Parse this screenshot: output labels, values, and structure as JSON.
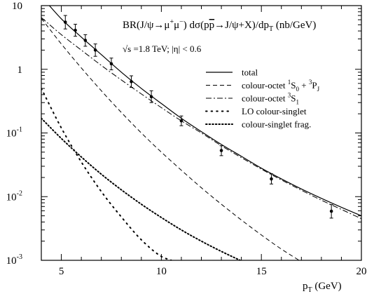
{
  "chart_data": {
    "type": "line",
    "title_parts": {
      "a": "BR(J/",
      "psi": "ψ",
      "arrow": "→",
      "mu1": "μ",
      "mu2": "μ",
      "b": ") dσ(p",
      "pbar": "p",
      "c": "→J/",
      "d": "+X)/dp",
      "sub_t": "T",
      "e": " (nb/GeV)"
    },
    "subtitle_parts": {
      "sqrt": "√",
      "s": "s =1.8 TeV; |",
      "eta": "η",
      "rest": "| < 0.6"
    },
    "xlabel_parts": {
      "p": "p",
      "sub": "T",
      "unit": " (GeV)"
    },
    "xlim": [
      4,
      20
    ],
    "ylim": [
      0.001,
      10
    ],
    "yscale": "log",
    "x_ticks": [
      {
        "value": 5,
        "label": "5"
      },
      {
        "value": 10,
        "label": "10"
      },
      {
        "value": 15,
        "label": "15"
      },
      {
        "value": 20,
        "label": "20"
      }
    ],
    "y_ticks": [
      {
        "value": 10,
        "base": "10",
        "exp": ""
      },
      {
        "value": 1,
        "base": "1",
        "exp": ""
      },
      {
        "value": 0.1,
        "base": "10",
        "exp": "-1"
      },
      {
        "value": 0.01,
        "base": "10",
        "exp": "-2"
      },
      {
        "value": 0.001,
        "base": "10",
        "exp": "-3"
      }
    ],
    "legend": {
      "placement": "upper-right",
      "entries": [
        {
          "key": "total",
          "dash": "solid",
          "parts": [
            {
              "t": "total"
            }
          ]
        },
        {
          "key": "octet1",
          "dash": "dashed",
          "parts": [
            {
              "t": "colour-octet "
            },
            {
              "t": "1",
              "sup": true
            },
            {
              "t": "S"
            },
            {
              "t": "0",
              "sub": true
            },
            {
              "t": " + "
            },
            {
              "t": "3",
              "sup": true
            },
            {
              "t": "P"
            },
            {
              "t": "J",
              "sub": true
            }
          ]
        },
        {
          "key": "octet3",
          "dash": "dashdot",
          "parts": [
            {
              "t": "colour-octet "
            },
            {
              "t": "3",
              "sup": true
            },
            {
              "t": "S"
            },
            {
              "t": "1",
              "sub": true
            }
          ]
        },
        {
          "key": "lo",
          "dash": "sparsedot",
          "parts": [
            {
              "t": "LO colour-singlet"
            }
          ]
        },
        {
          "key": "frag",
          "dash": "densedot",
          "parts": [
            {
              "t": "colour-singlet frag."
            }
          ]
        }
      ]
    },
    "series": [
      {
        "key": "total",
        "x": [
          4.4,
          5,
          6,
          7,
          8,
          9,
          10,
          11,
          12,
          13,
          14,
          15,
          16,
          17,
          18,
          19,
          20
        ],
        "y": [
          10,
          6.2,
          3.2,
          1.7,
          0.9,
          0.5,
          0.29,
          0.17,
          0.105,
          0.066,
          0.043,
          0.028,
          0.019,
          0.0132,
          0.0094,
          0.0068,
          0.005
        ]
      },
      {
        "key": "octet1",
        "x": [
          4,
          5,
          6,
          7,
          8,
          9,
          10,
          11,
          12,
          13,
          14,
          15,
          16,
          17,
          18
        ],
        "y": [
          6.3,
          2.5,
          1.05,
          0.46,
          0.21,
          0.1,
          0.05,
          0.026,
          0.0138,
          0.0076,
          0.0043,
          0.0025,
          0.0015,
          0.00095,
          0.0006
        ]
      },
      {
        "key": "octet3",
        "x": [
          4,
          5,
          6,
          7,
          8,
          9,
          10,
          11,
          12,
          13,
          14,
          15,
          16,
          17,
          18,
          19,
          20
        ],
        "y": [
          6.5,
          3.5,
          2.0,
          1.15,
          0.68,
          0.41,
          0.25,
          0.155,
          0.1,
          0.063,
          0.041,
          0.027,
          0.0183,
          0.0126,
          0.0088,
          0.0063,
          0.0045
        ]
      },
      {
        "key": "lo",
        "x": [
          4,
          5,
          6,
          7,
          8,
          9,
          10,
          10.5
        ],
        "y": [
          0.5,
          0.12,
          0.035,
          0.012,
          0.0048,
          0.0021,
          0.00115,
          0.001
        ]
      },
      {
        "key": "frag",
        "x": [
          4,
          5,
          6,
          7,
          8,
          9,
          10,
          11,
          12,
          13,
          14,
          14.5
        ],
        "y": [
          0.17,
          0.082,
          0.042,
          0.0225,
          0.0128,
          0.0076,
          0.0047,
          0.003,
          0.002,
          0.00138,
          0.00098,
          0.00083
        ]
      }
    ],
    "data_points": [
      {
        "x": 5.2,
        "y": 5.5,
        "ylo": 4.3,
        "yhi": 7.0
      },
      {
        "x": 5.7,
        "y": 4.1,
        "ylo": 3.3,
        "yhi": 5.1
      },
      {
        "x": 6.2,
        "y": 2.85,
        "ylo": 2.3,
        "yhi": 3.5
      },
      {
        "x": 6.7,
        "y": 2.0,
        "ylo": 1.6,
        "yhi": 2.5
      },
      {
        "x": 7.5,
        "y": 1.22,
        "ylo": 0.98,
        "yhi": 1.5
      },
      {
        "x": 8.5,
        "y": 0.64,
        "ylo": 0.52,
        "yhi": 0.79
      },
      {
        "x": 9.5,
        "y": 0.37,
        "ylo": 0.3,
        "yhi": 0.46
      },
      {
        "x": 11.0,
        "y": 0.155,
        "ylo": 0.13,
        "yhi": 0.185
      },
      {
        "x": 13.0,
        "y": 0.053,
        "ylo": 0.044,
        "yhi": 0.063
      },
      {
        "x": 15.5,
        "y": 0.019,
        "ylo": 0.0158,
        "yhi": 0.0228
      },
      {
        "x": 18.5,
        "y": 0.0059,
        "ylo": 0.0046,
        "yhi": 0.0075
      }
    ]
  }
}
